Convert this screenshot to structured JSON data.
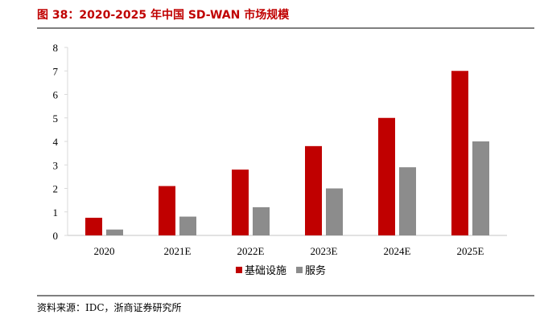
{
  "figure": {
    "title": "图 38：2020-2025 年中国 SD-WAN 市场规模",
    "source": "资料来源：IDC，浙商证券研究所"
  },
  "colors": {
    "title": "#c00000",
    "series_infra": "#c00000",
    "series_service": "#8c8c8c",
    "axis": "#d9d9d9",
    "rule": "#7f7f7f"
  },
  "chart_data": {
    "type": "bar",
    "title": "2020-2025 年中国 SD-WAN 市场规模",
    "xlabel": "",
    "ylabel": "",
    "categories": [
      "2020",
      "2021E",
      "2022E",
      "2023E",
      "2024E",
      "2025E"
    ],
    "series": [
      {
        "name": "基础设施",
        "values": [
          0.75,
          2.1,
          2.8,
          3.8,
          5.0,
          7.0
        ]
      },
      {
        "name": "服务",
        "values": [
          0.25,
          0.8,
          1.2,
          2.0,
          2.9,
          4.0
        ]
      }
    ],
    "ylim": [
      0,
      8
    ],
    "yticks": [
      "0",
      "1",
      "2",
      "3",
      "4",
      "5",
      "6",
      "7",
      "8"
    ],
    "grid": false,
    "legend": "bottom-center"
  }
}
